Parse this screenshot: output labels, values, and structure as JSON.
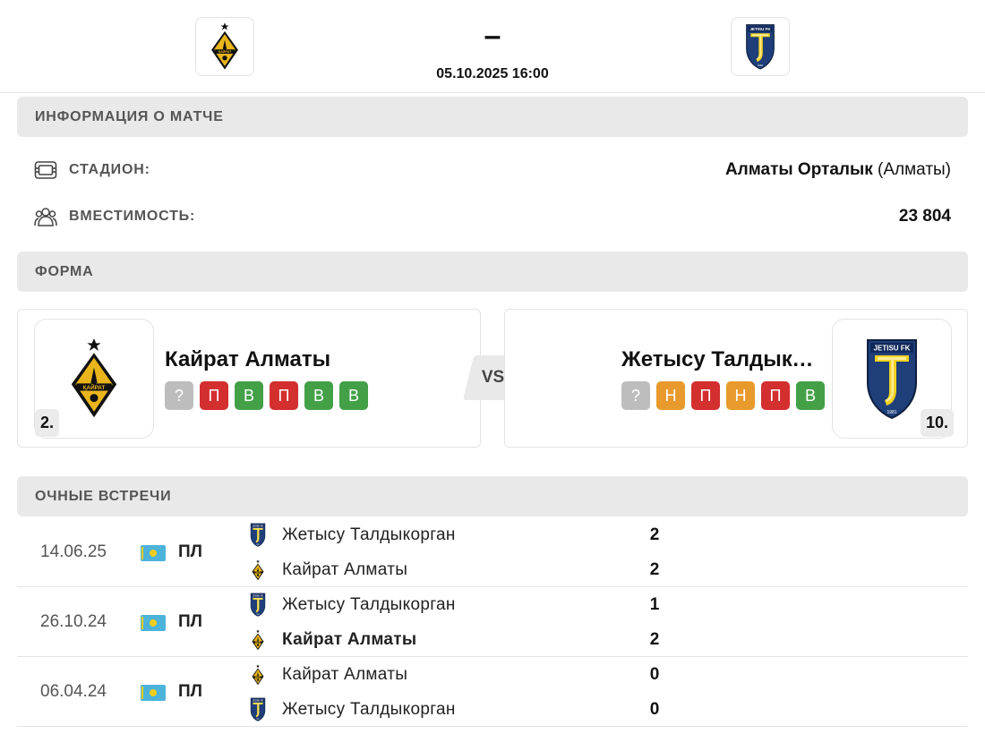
{
  "match": {
    "score": "–",
    "datetime": "05.10.2025 16:00"
  },
  "info": {
    "section_title": "ИНФОРМАЦИЯ О МАТЧЕ",
    "stadium_label": "СТАДИОН:",
    "stadium_name": "Алматы Орталык",
    "stadium_city": "(Алматы)",
    "capacity_label": "ВМЕСТИМОСТЬ:",
    "capacity_value": "23 804"
  },
  "form": {
    "section_title": "ФОРМА",
    "vs": "VS",
    "home": {
      "name": "Кайрат Алматы",
      "rank": "2.",
      "results": [
        {
          "label": "?",
          "color": "#bdbdbd"
        },
        {
          "label": "П",
          "color": "#d32f2f"
        },
        {
          "label": "В",
          "color": "#43a047"
        },
        {
          "label": "П",
          "color": "#d32f2f"
        },
        {
          "label": "В",
          "color": "#43a047"
        },
        {
          "label": "В",
          "color": "#43a047"
        }
      ]
    },
    "away": {
      "name": "Жетысу Талдыкорган",
      "rank": "10.",
      "results": [
        {
          "label": "?",
          "color": "#bdbdbd"
        },
        {
          "label": "Н",
          "color": "#e89a2c"
        },
        {
          "label": "П",
          "color": "#d32f2f"
        },
        {
          "label": "Н",
          "color": "#e89a2c"
        },
        {
          "label": "П",
          "color": "#d32f2f"
        },
        {
          "label": "В",
          "color": "#43a047"
        }
      ]
    }
  },
  "h2h": {
    "section_title": "ОЧНЫЕ ВСТРЕЧИ",
    "matches": [
      {
        "date": "14.06.25",
        "league": "ПЛ",
        "top": {
          "team": "Жетысу Талдыкорган",
          "crest": "zhetysu",
          "score": "2",
          "winner": false
        },
        "bottom": {
          "team": "Кайрат Алматы",
          "crest": "kairat",
          "score": "2",
          "winner": false
        }
      },
      {
        "date": "26.10.24",
        "league": "ПЛ",
        "top": {
          "team": "Жетысу Талдыкорган",
          "crest": "zhetysu",
          "score": "1",
          "winner": false
        },
        "bottom": {
          "team": "Кайрат Алматы",
          "crest": "kairat",
          "score": "2",
          "winner": true
        }
      },
      {
        "date": "06.04.24",
        "league": "ПЛ",
        "top": {
          "team": "Кайрат Алматы",
          "crest": "kairat",
          "score": "0",
          "winner": false
        },
        "bottom": {
          "team": "Жетысу Талдыкорган",
          "crest": "zhetysu",
          "score": "0",
          "winner": false
        }
      }
    ]
  },
  "colors": {
    "kairat_gold": "#e9b51b",
    "zhetysu_navy": "#1f3f7a",
    "zhetysu_yellow": "#f3d21f"
  },
  "icons": {
    "stadium": "stadium-icon",
    "capacity": "people-icon",
    "flag": "kazakhstan-flag-icon"
  }
}
